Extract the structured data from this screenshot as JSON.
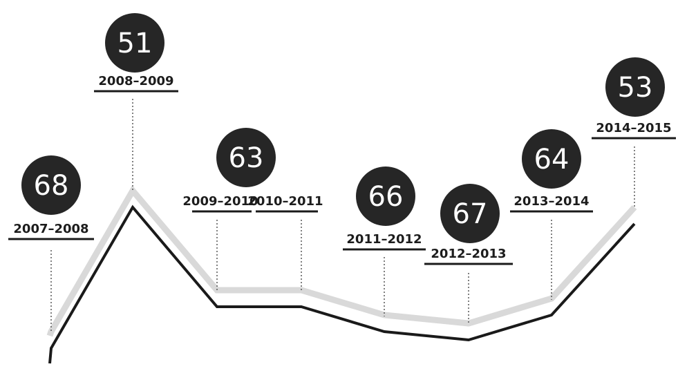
{
  "chart_data": {
    "type": "line",
    "categories": [
      "2007–2008",
      "2008–2009",
      "2009–2010",
      "2010–2011",
      "2011–2012",
      "2012–2013",
      "2013–2014",
      "2014–2015"
    ],
    "values": [
      68,
      51,
      63,
      63,
      66,
      67,
      64,
      53
    ],
    "y_axis_inverted": true,
    "ylim": [
      51,
      68
    ],
    "grid": false,
    "legend": "none",
    "title": "",
    "xlabel": "",
    "ylabel": ""
  },
  "colors": {
    "bubble": "#262626",
    "line": "#1a1a1a",
    "halo": "#d9d9d9",
    "leader": "#555555"
  }
}
